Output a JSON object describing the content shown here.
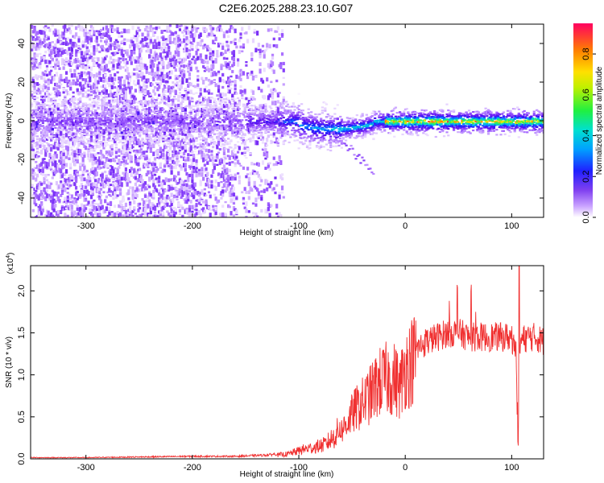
{
  "title": "C2E6.2025.288.23.10.G07",
  "colors": {
    "snr_line": "#f03030",
    "spectrogram_palette": [
      "#ffffff",
      "#e0c8ff",
      "#a060ff",
      "#6010f0",
      "#2020ff",
      "#00a0ff",
      "#00e0c0",
      "#40f040",
      "#f0f000",
      "#ff8000",
      "#ff0060"
    ]
  },
  "chart_data": [
    {
      "type": "heatmap",
      "name": "spectrogram",
      "xlabel": "Height of straight line (km)",
      "ylabel": "Frequency (Hz)",
      "xlim": [
        -352,
        130
      ],
      "ylim": [
        -50,
        50
      ],
      "xticks": [
        -300,
        -200,
        -100,
        0,
        100
      ],
      "yticks": [
        -40,
        -20,
        0,
        20,
        40
      ],
      "xtick_labels": [
        "-300",
        "-200",
        "-100",
        "0",
        "100"
      ],
      "ytick_labels": [
        "-40",
        "-20",
        "0",
        "20",
        "40"
      ],
      "description_features": {
        "central_band_center_hz": 0,
        "scatter_region_end_km": -125,
        "central_band_peak_amplitude": 0.95
      }
    },
    {
      "type": "colorbar",
      "name": "amplitude-colorbar",
      "label": "Normalized spectral amplitude",
      "range": [
        0,
        0.95
      ],
      "ticks": [
        0.0,
        0.2,
        0.4,
        0.6,
        0.8
      ],
      "tick_labels": [
        "0.0",
        "0.2",
        "0.4",
        "0.6",
        "0.8"
      ]
    },
    {
      "type": "line",
      "name": "snr",
      "xlabel": "Height of straight line (km)",
      "ylabel": "SNR (10 * v/v)",
      "y_multiplier": "(x10",
      "y_multiplier_exp": "4",
      "y_multiplier_close": ")",
      "xlim": [
        -352,
        130
      ],
      "ylim": [
        0,
        2.3
      ],
      "xticks": [
        -300,
        -200,
        -100,
        0,
        100
      ],
      "yticks": [
        0.0,
        0.5,
        1.0,
        1.5,
        2.0
      ],
      "xtick_labels": [
        "-300",
        "-200",
        "-100",
        "0",
        "100"
      ],
      "ytick_labels": [
        "0.0",
        "0.5",
        "1.0",
        "1.5",
        "2.0"
      ],
      "series": [
        {
          "name": "SNR",
          "x": [
            -352,
            -300,
            -250,
            -200,
            -160,
            -130,
            -110,
            -95,
            -85,
            -75,
            -65,
            -55,
            -48,
            -40,
            -33,
            -25,
            -18,
            -10,
            -5,
            0,
            5,
            10,
            20,
            30,
            40,
            50,
            60,
            70,
            80,
            90,
            100,
            104,
            106,
            108,
            115,
            122,
            130
          ],
          "y": [
            0.01,
            0.01,
            0.015,
            0.02,
            0.02,
            0.03,
            0.05,
            0.1,
            0.12,
            0.15,
            0.25,
            0.45,
            0.6,
            0.7,
            0.8,
            0.95,
            1.0,
            1.0,
            0.9,
            1.15,
            1.2,
            1.3,
            1.4,
            1.45,
            1.5,
            1.5,
            1.45,
            1.45,
            1.45,
            1.45,
            1.45,
            1.3,
            0.2,
            1.4,
            1.45,
            1.45,
            1.4
          ]
        }
      ],
      "peak_value": 2.3,
      "peak_x": 107
    }
  ]
}
